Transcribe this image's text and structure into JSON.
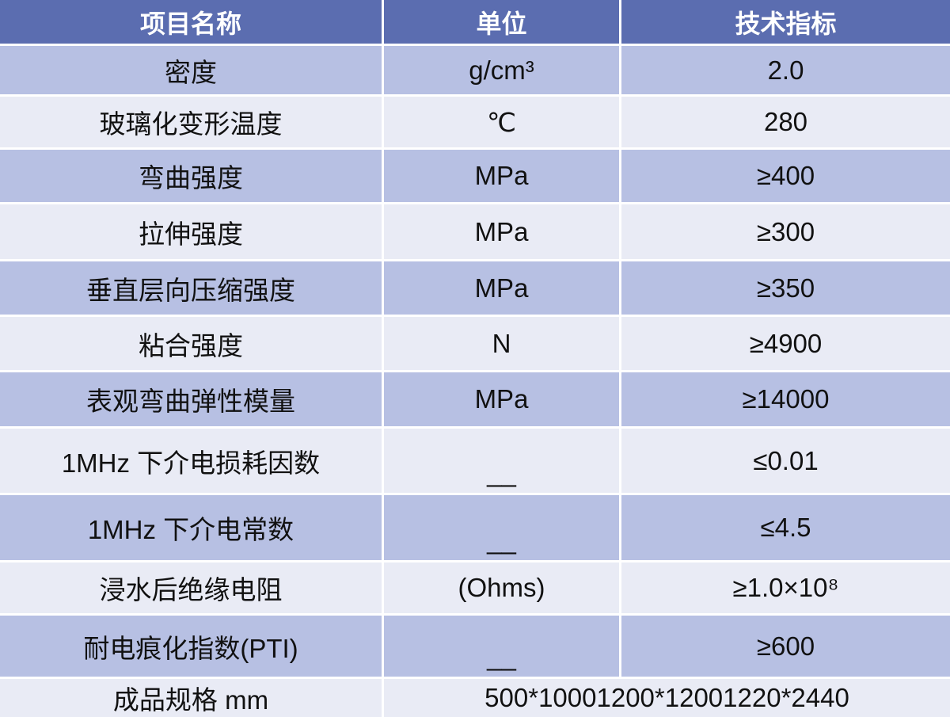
{
  "header": [
    "项目名称",
    "单位",
    "技术指标"
  ],
  "rows": [
    [
      "密度",
      "g/cm³",
      "2.0"
    ],
    [
      "玻璃化变形温度",
      "℃",
      "280"
    ],
    [
      "弯曲强度",
      "MPa",
      "≥400"
    ],
    [
      "拉伸强度",
      "MPa",
      "≥300"
    ],
    [
      "垂直层向压缩强度",
      "MPa",
      "≥350"
    ],
    [
      "粘合强度",
      "N",
      "≥4900"
    ],
    [
      "表观弯曲弹性模量",
      "MPa",
      "≥14000"
    ],
    [
      "1MHz 下介电损耗因数",
      "__",
      "≤0.01"
    ],
    [
      "1MHz 下介电常数",
      "__",
      "≤4.5"
    ],
    [
      "浸水后绝缘电阻",
      "(Ohms)",
      "≥1.0×10⁸"
    ],
    [
      "耐电痕化指数(PTI)",
      "__",
      "≥600"
    ]
  ],
  "footer": [
    "成品规格 mm",
    "500*10001200*12001220*2440"
  ],
  "colors": {
    "header": "#5b6db0",
    "row_dark": "#b7c0e3",
    "row_light": "#e9ebf5"
  }
}
